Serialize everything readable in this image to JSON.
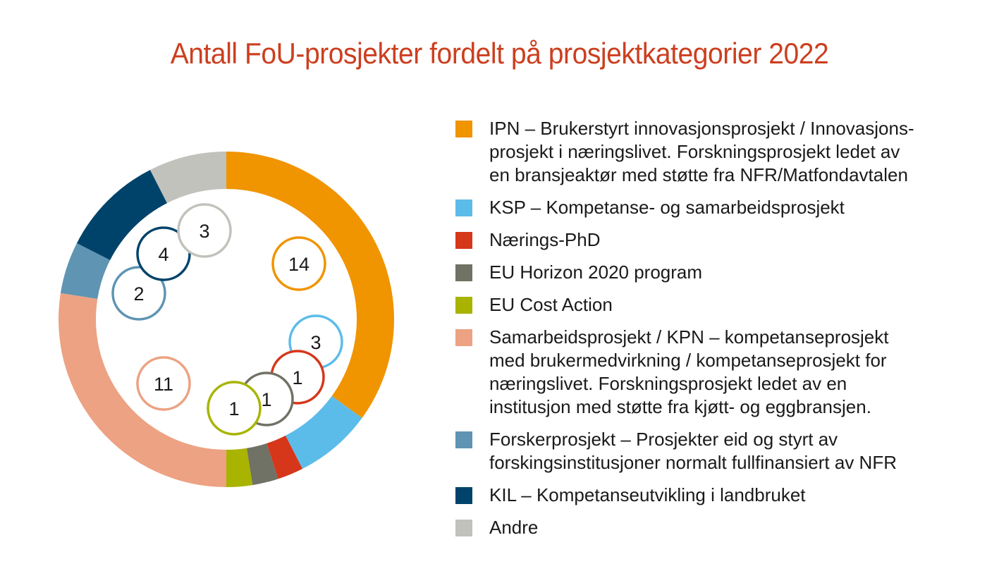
{
  "chart_data": {
    "type": "pie",
    "title": "Antall FoU-prosjekter fordelt på prosjektkategorier 2022",
    "legend_position": "right",
    "slices": [
      {
        "label": "IPN – Brukerstyrt innovasjonsprosjekt / Innovasjons-\nprosjekt i næringslivet. Forskningsprosjekt ledet av\nen bransjeaktør med støtte fra NFR/Matfondavtalen",
        "value": 14,
        "color": "#f09400"
      },
      {
        "label": "KSP – Kompetanse- og samarbeidsprosjekt",
        "value": 3,
        "color": "#5cbce9"
      },
      {
        "label": "Nærings-PhD",
        "value": 1,
        "color": "#d6361a"
      },
      {
        "label": "EU Horizon 2020 program",
        "value": 1,
        "color": "#6f7264"
      },
      {
        "label": "EU Cost Action",
        "value": 1,
        "color": "#a8b400"
      },
      {
        "label": "Samarbeidsprosjekt / KPN – kompetanseprosjekt\nmed brukermedvirkning / kompetanseprosjekt for\nnæringslivet. Forskningsprosjekt ledet av en\ninstitusjon med støtte fra kjøtt- og eggbransjen.",
        "value": 11,
        "color": "#eca283"
      },
      {
        "label": "Forskerprosjekt – Prosjekter eid og styrt av\nforskingsinstitusjoner normalt fullfinansiert av NFR",
        "value": 2,
        "color": "#5f94b3"
      },
      {
        "label": "KIL – Kompetanseutvikling i landbruket",
        "value": 4,
        "color": "#00436a"
      },
      {
        "label": "Andre",
        "value": 3,
        "color": "#c2c2bc"
      }
    ]
  }
}
